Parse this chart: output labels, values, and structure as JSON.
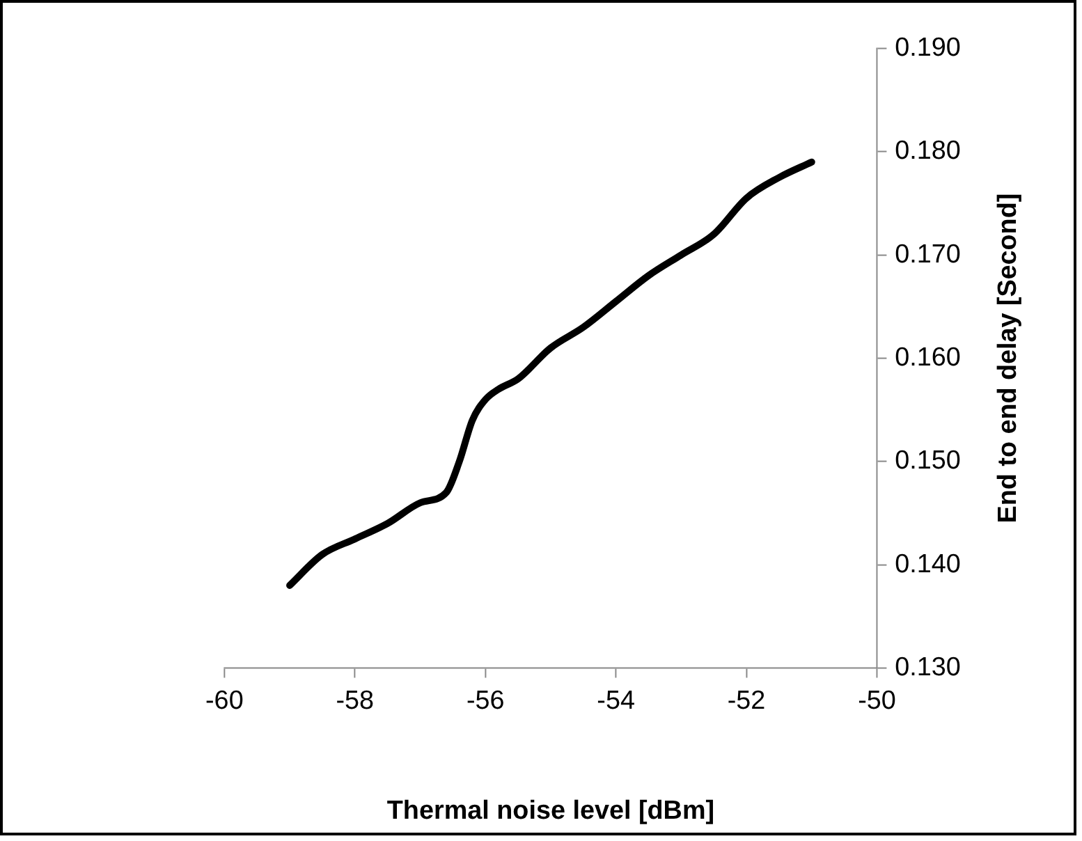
{
  "chart_data": {
    "type": "line",
    "xlabel": "Thermal noise level [dBm]",
    "ylabel": "End to end delay [Second]",
    "x": [
      -59,
      -58.5,
      -58,
      -57.5,
      -57,
      -56.6,
      -56.4,
      -56.2,
      -56,
      -55.8,
      -55.5,
      -55,
      -54.5,
      -54,
      -53.5,
      -53,
      -52.5,
      -52,
      -51.5,
      -51
    ],
    "series": [
      {
        "color": "#000000",
        "values": [
          0.138,
          0.141,
          0.1425,
          0.144,
          0.146,
          0.147,
          0.15,
          0.154,
          0.156,
          0.157,
          0.158,
          0.161,
          0.163,
          0.1655,
          0.168,
          0.17,
          0.172,
          0.1755,
          0.1775,
          0.179
        ]
      }
    ],
    "xlim": [
      -60,
      -50
    ],
    "xticks": [
      -60,
      -58,
      -56,
      -54,
      -52,
      -50
    ],
    "ylim": [
      0.13,
      0.19
    ],
    "yticks": [
      {
        "value": 0.13,
        "label": "0.130"
      },
      {
        "value": 0.14,
        "label": "0.140"
      },
      {
        "value": 0.15,
        "label": "0.150"
      },
      {
        "value": 0.16,
        "label": "0.160"
      },
      {
        "value": 0.17,
        "label": "0.170"
      },
      {
        "value": 0.18,
        "label": "0.180"
      },
      {
        "value": 0.19,
        "label": "0.190"
      }
    ],
    "grid": false,
    "legend": false,
    "marker": "none",
    "line_style": "solid"
  }
}
